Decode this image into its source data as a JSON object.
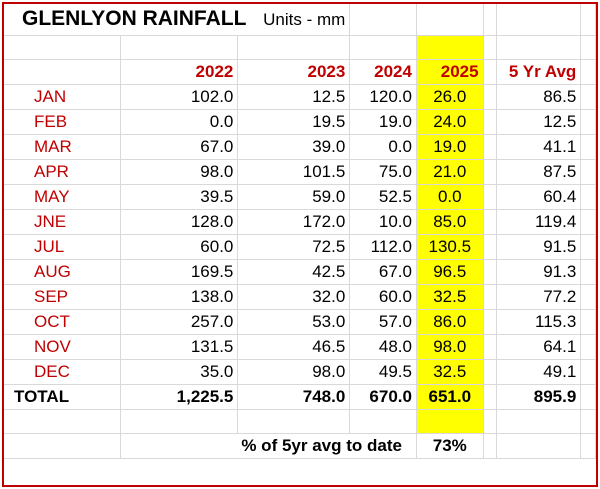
{
  "title": "GLENLYON RAINFALL",
  "units": "Units - mm",
  "headers": [
    "2022",
    "2023",
    "2024",
    "2025",
    "5 Yr Avg"
  ],
  "rows": [
    {
      "month": "JAN",
      "values": [
        "102.0",
        "12.5",
        "120.0",
        "26.0",
        "86.5"
      ]
    },
    {
      "month": "FEB",
      "values": [
        "0.0",
        "19.5",
        "19.0",
        "24.0",
        "12.5"
      ]
    },
    {
      "month": "MAR",
      "values": [
        "67.0",
        "39.0",
        "0.0",
        "19.0",
        "41.1"
      ]
    },
    {
      "month": "APR",
      "values": [
        "98.0",
        "101.5",
        "75.0",
        "21.0",
        "87.5"
      ]
    },
    {
      "month": "MAY",
      "values": [
        "39.5",
        "59.0",
        "52.5",
        "0.0",
        "60.4"
      ]
    },
    {
      "month": "JNE",
      "values": [
        "128.0",
        "172.0",
        "10.0",
        "85.0",
        "119.4"
      ]
    },
    {
      "month": "JUL",
      "values": [
        "60.0",
        "72.5",
        "112.0",
        "130.5",
        "91.5"
      ]
    },
    {
      "month": "AUG",
      "values": [
        "169.5",
        "42.5",
        "67.0",
        "96.5",
        "91.3"
      ]
    },
    {
      "month": "SEP",
      "values": [
        "138.0",
        "32.0",
        "60.0",
        "32.5",
        "77.2"
      ]
    },
    {
      "month": "OCT",
      "values": [
        "257.0",
        "53.0",
        "57.0",
        "86.0",
        "115.3"
      ]
    },
    {
      "month": "NOV",
      "values": [
        "131.5",
        "46.5",
        "48.0",
        "98.0",
        "64.1"
      ]
    },
    {
      "month": "DEC",
      "values": [
        "35.0",
        "98.0",
        "49.5",
        "32.5",
        "49.1"
      ]
    }
  ],
  "total": {
    "label": "TOTAL",
    "values": [
      "1,225.5",
      "748.0",
      "670.0",
      "651.0",
      "895.9"
    ]
  },
  "summary": {
    "label": "% of 5yr avg to date",
    "value": "73%"
  },
  "colors": {
    "header_red": "#c00000",
    "highlight": "#ffff00",
    "border": "#c00000"
  }
}
